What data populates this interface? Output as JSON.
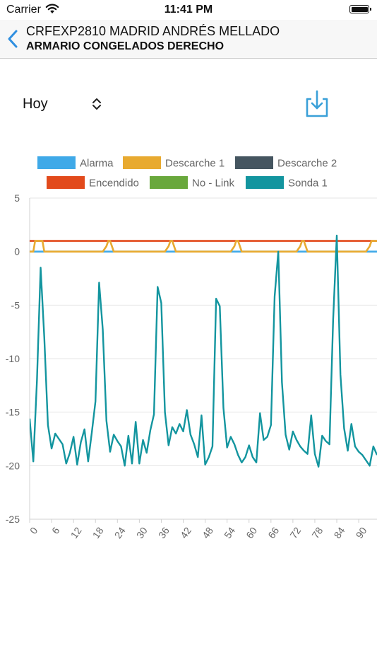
{
  "status_bar": {
    "carrier": "Carrier",
    "time": "11:41 PM",
    "wifi_icon": "wifi-icon",
    "battery_icon": "battery-icon"
  },
  "header": {
    "back_icon": "chevron-left-icon",
    "title": "CRFEXP2810 MADRID ANDRÉS MELLADO",
    "subtitle": "ARMARIO CONGELADOS DERECHO"
  },
  "controls": {
    "period_value": "Hoy",
    "period_icon": "up-down-chevron-icon",
    "download_icon": "download-icon",
    "accent_color": "#3aa0d8"
  },
  "chart_data": {
    "type": "line",
    "legend": [
      {
        "name": "Alarma",
        "color": "#3fa9e8"
      },
      {
        "name": "Descarche 1",
        "color": "#e8aa30"
      },
      {
        "name": "Descarche 2",
        "color": "#455560"
      },
      {
        "name": "Encendido",
        "color": "#e24a1c"
      },
      {
        "name": "No - Link",
        "color": "#69a83c"
      },
      {
        "name": "Sonda 1",
        "color": "#13959f"
      }
    ],
    "legend_position": "top",
    "ylim": [
      -25,
      5
    ],
    "yticks": [
      5,
      0,
      -5,
      -10,
      -15,
      -20,
      -25
    ],
    "xlim": [
      0,
      95
    ],
    "xticks": [
      0,
      6,
      12,
      18,
      24,
      30,
      36,
      42,
      48,
      54,
      60,
      66,
      72,
      78,
      84,
      90
    ],
    "grid": true,
    "series": [
      {
        "name": "Alarma",
        "x": [
          0,
          95
        ],
        "values": [
          0,
          0
        ]
      },
      {
        "name": "Encendido",
        "x": [
          0,
          95
        ],
        "values": [
          1,
          1
        ]
      },
      {
        "name": "Descarche 1",
        "x": [
          0,
          1,
          1.5,
          2,
          3,
          3.5,
          4,
          20,
          21,
          21.5,
          22,
          23,
          37,
          38,
          38.5,
          39,
          40,
          55,
          56,
          56.5,
          57,
          58,
          73,
          74,
          74.5,
          75,
          76,
          92,
          93,
          93.5,
          94,
          95
        ],
        "values": [
          0,
          0,
          1,
          1,
          1,
          1,
          0,
          0,
          0.5,
          1,
          1,
          0,
          0,
          0.5,
          1,
          1,
          0,
          0,
          0.5,
          1,
          1,
          0,
          0,
          0.5,
          1,
          1,
          0,
          0,
          0.5,
          1,
          1,
          1
        ]
      },
      {
        "name": "Sonda 1",
        "x": [
          0,
          1,
          2,
          3,
          4,
          5,
          6,
          7,
          8,
          9,
          10,
          11,
          12,
          13,
          14,
          15,
          16,
          17,
          18,
          19,
          20,
          21,
          22,
          23,
          24,
          25,
          26,
          27,
          28,
          29,
          30,
          31,
          32,
          33,
          34,
          35,
          36,
          37,
          38,
          39,
          40,
          41,
          42,
          43,
          44,
          45,
          46,
          47,
          48,
          49,
          50,
          51,
          52,
          53,
          54,
          55,
          56,
          57,
          58,
          59,
          60,
          61,
          62,
          63,
          64,
          65,
          66,
          67,
          68,
          69,
          70,
          71,
          72,
          73,
          74,
          75,
          76,
          77,
          78,
          79,
          80,
          81,
          82,
          83,
          84,
          85,
          86,
          87,
          88,
          89,
          90,
          91,
          92,
          93,
          94,
          95
        ],
        "values": [
          -15.6,
          -19.6,
          -12,
          -1.5,
          -8,
          -16.2,
          -18.4,
          -17,
          -17.5,
          -18,
          -19.8,
          -18.8,
          -17.3,
          -19.9,
          -17.8,
          -16.6,
          -19.6,
          -16.9,
          -14,
          -2.9,
          -7.3,
          -15.8,
          -18.7,
          -17.1,
          -17.7,
          -18.2,
          -20,
          -17.2,
          -19.8,
          -15.9,
          -19.8,
          -17.6,
          -18.8,
          -16.7,
          -15.2,
          -3.3,
          -4.8,
          -15,
          -18.1,
          -16.4,
          -17,
          -16.1,
          -16.8,
          -14.8,
          -17.1,
          -18,
          -19.2,
          -15.3,
          -19.9,
          -19.2,
          -18.2,
          -4.4,
          -5.1,
          -14.6,
          -18.3,
          -17.3,
          -18,
          -19,
          -19.7,
          -19.2,
          -18.1,
          -19.2,
          -19.7,
          -15.1,
          -17.6,
          -17.3,
          -16.2,
          -4.2,
          0,
          -12.2,
          -17.1,
          -18.5,
          -16.8,
          -17.6,
          -18.2,
          -18.6,
          -18.9,
          -15.3,
          -18.9,
          -20.1,
          -17.2,
          -17.7,
          -18,
          -6.4,
          1.5,
          -11.5,
          -16.5,
          -18.6,
          -16.1,
          -18.2,
          -18.7,
          -19,
          -19.5,
          -20,
          -18.2,
          -19
        ]
      }
    ]
  }
}
